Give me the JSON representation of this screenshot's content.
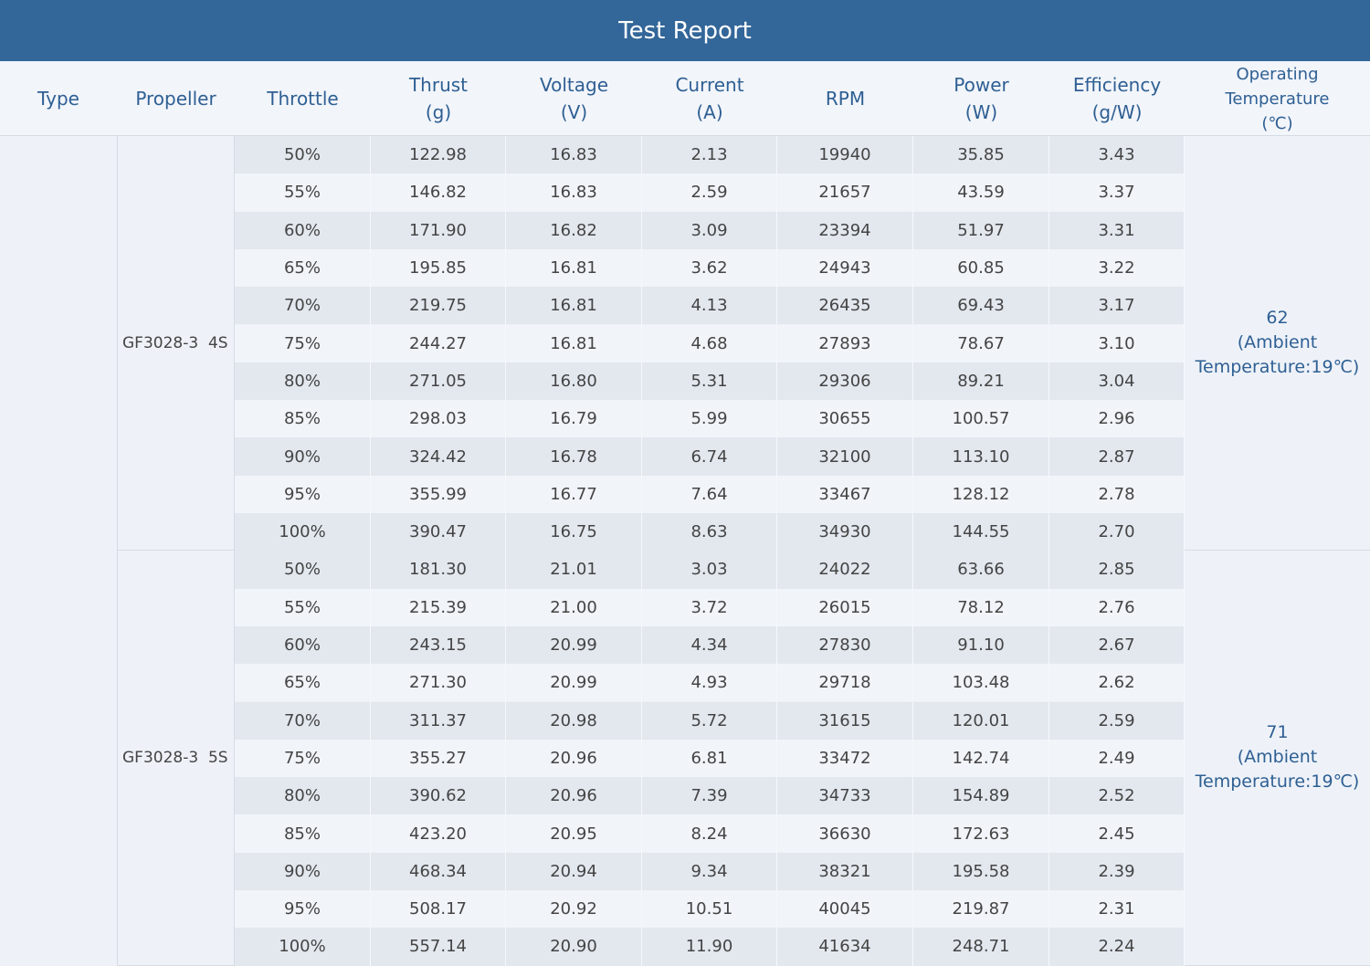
{
  "header": {
    "title": "Test Report"
  },
  "table": {
    "columns": [
      [
        "Type"
      ],
      [
        "Propeller"
      ],
      [
        "Throttle"
      ],
      [
        "Thrust",
        "(g)"
      ],
      [
        "Voltage",
        "(V)"
      ],
      [
        "Current",
        "(A)"
      ],
      [
        "RPM"
      ],
      [
        "Power",
        "(W)"
      ],
      [
        "Efficiency",
        "(g/W)"
      ],
      [
        "Operating",
        "Temperature",
        "(℃)"
      ]
    ],
    "groups": [
      {
        "propeller": "GF3028-3  4S",
        "temperature": [
          "62",
          "(Ambient",
          "Temperature:19℃)"
        ],
        "rows": [
          [
            "50%",
            "122.98",
            "16.83",
            "2.13",
            "19940",
            "35.85",
            "3.43"
          ],
          [
            "55%",
            "146.82",
            "16.83",
            "2.59",
            "21657",
            "43.59",
            "3.37"
          ],
          [
            "60%",
            "171.90",
            "16.82",
            "3.09",
            "23394",
            "51.97",
            "3.31"
          ],
          [
            "65%",
            "195.85",
            "16.81",
            "3.62",
            "24943",
            "60.85",
            "3.22"
          ],
          [
            "70%",
            "219.75",
            "16.81",
            "4.13",
            "26435",
            "69.43",
            "3.17"
          ],
          [
            "75%",
            "244.27",
            "16.81",
            "4.68",
            "27893",
            "78.67",
            "3.10"
          ],
          [
            "80%",
            "271.05",
            "16.80",
            "5.31",
            "29306",
            "89.21",
            "3.04"
          ],
          [
            "85%",
            "298.03",
            "16.79",
            "5.99",
            "30655",
            "100.57",
            "2.96"
          ],
          [
            "90%",
            "324.42",
            "16.78",
            "6.74",
            "32100",
            "113.10",
            "2.87"
          ],
          [
            "95%",
            "355.99",
            "16.77",
            "7.64",
            "33467",
            "128.12",
            "2.78"
          ],
          [
            "100%",
            "390.47",
            "16.75",
            "8.63",
            "34930",
            "144.55",
            "2.70"
          ]
        ]
      },
      {
        "propeller": "GF3028-3  5S",
        "temperature": [
          "71",
          "(Ambient",
          "Temperature:19℃)"
        ],
        "rows": [
          [
            "50%",
            "181.30",
            "21.01",
            "3.03",
            "24022",
            "63.66",
            "2.85"
          ],
          [
            "55%",
            "215.39",
            "21.00",
            "3.72",
            "26015",
            "78.12",
            "2.76"
          ],
          [
            "60%",
            "243.15",
            "20.99",
            "4.34",
            "27830",
            "91.10",
            "2.67"
          ],
          [
            "65%",
            "271.30",
            "20.99",
            "4.93",
            "29718",
            "103.48",
            "2.62"
          ],
          [
            "70%",
            "311.37",
            "20.98",
            "5.72",
            "31615",
            "120.01",
            "2.59"
          ],
          [
            "75%",
            "355.27",
            "20.96",
            "6.81",
            "33472",
            "142.74",
            "2.49"
          ],
          [
            "80%",
            "390.62",
            "20.96",
            "7.39",
            "34733",
            "154.89",
            "2.52"
          ],
          [
            "85%",
            "423.20",
            "20.95",
            "8.24",
            "36630",
            "172.63",
            "2.45"
          ],
          [
            "90%",
            "468.34",
            "20.94",
            "9.34",
            "38321",
            "195.58",
            "2.39"
          ],
          [
            "95%",
            "508.17",
            "20.92",
            "10.51",
            "40045",
            "219.87",
            "2.31"
          ],
          [
            "100%",
            "557.14",
            "20.90",
            "11.90",
            "41634",
            "248.71",
            "2.24"
          ]
        ]
      }
    ]
  }
}
